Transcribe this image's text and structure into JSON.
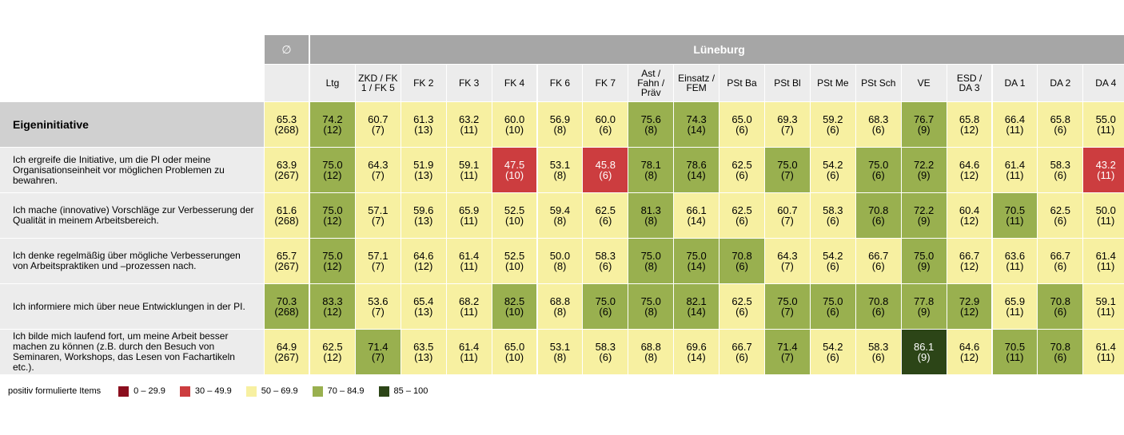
{
  "chart_data": {
    "type": "heatmap",
    "avg_header": "∅",
    "group_header": "Lüneburg",
    "avg_column_label": "",
    "columns": [
      "Ltg",
      "ZKD / FK\n1 / FK 5",
      "FK 2",
      "FK 3",
      "FK 4",
      "FK 6",
      "FK 7",
      "Ast /\nFahn /\nPräv",
      "Einsatz /\nFEM",
      "PSt Ba",
      "PSt Bl",
      "PSt Me",
      "PSt Sch",
      "VE",
      "ESD /\nDA 3",
      "DA 1",
      "DA 2",
      "DA 4"
    ],
    "rows": [
      {
        "label": "Eigeninitiative",
        "is_group": true,
        "avg": {
          "value": "65.3",
          "n": "(268)"
        },
        "cells": [
          {
            "value": "74.2",
            "n": "(12)"
          },
          {
            "value": "60.7",
            "n": "(7)"
          },
          {
            "value": "61.3",
            "n": "(13)"
          },
          {
            "value": "63.2",
            "n": "(11)"
          },
          {
            "value": "60.0",
            "n": "(10)"
          },
          {
            "value": "56.9",
            "n": "(8)"
          },
          {
            "value": "60.0",
            "n": "(6)"
          },
          {
            "value": "75.6",
            "n": "(8)"
          },
          {
            "value": "74.3",
            "n": "(14)"
          },
          {
            "value": "65.0",
            "n": "(6)"
          },
          {
            "value": "69.3",
            "n": "(7)"
          },
          {
            "value": "59.2",
            "n": "(6)"
          },
          {
            "value": "68.3",
            "n": "(6)"
          },
          {
            "value": "76.7",
            "n": "(9)"
          },
          {
            "value": "65.8",
            "n": "(12)"
          },
          {
            "value": "66.4",
            "n": "(11)"
          },
          {
            "value": "65.8",
            "n": "(6)"
          },
          {
            "value": "55.0",
            "n": "(11)"
          }
        ]
      },
      {
        "label": "Ich ergreife die Initiative, um die PI oder meine Organisationseinheit vor möglichen Problemen zu bewahren.",
        "is_group": false,
        "avg": {
          "value": "63.9",
          "n": "(267)"
        },
        "cells": [
          {
            "value": "75.0",
            "n": "(12)"
          },
          {
            "value": "64.3",
            "n": "(7)"
          },
          {
            "value": "51.9",
            "n": "(13)"
          },
          {
            "value": "59.1",
            "n": "(11)"
          },
          {
            "value": "47.5",
            "n": "(10)"
          },
          {
            "value": "53.1",
            "n": "(8)"
          },
          {
            "value": "45.8",
            "n": "(6)"
          },
          {
            "value": "78.1",
            "n": "(8)"
          },
          {
            "value": "78.6",
            "n": "(14)"
          },
          {
            "value": "62.5",
            "n": "(6)"
          },
          {
            "value": "75.0",
            "n": "(7)"
          },
          {
            "value": "54.2",
            "n": "(6)"
          },
          {
            "value": "75.0",
            "n": "(6)"
          },
          {
            "value": "72.2",
            "n": "(9)"
          },
          {
            "value": "64.6",
            "n": "(12)"
          },
          {
            "value": "61.4",
            "n": "(11)"
          },
          {
            "value": "58.3",
            "n": "(6)"
          },
          {
            "value": "43.2",
            "n": "(11)"
          }
        ]
      },
      {
        "label": "Ich mache (innovative) Vorschläge zur Verbesserung der Qualität in meinem Arbeitsbereich.",
        "is_group": false,
        "avg": {
          "value": "61.6",
          "n": "(268)"
        },
        "cells": [
          {
            "value": "75.0",
            "n": "(12)"
          },
          {
            "value": "57.1",
            "n": "(7)"
          },
          {
            "value": "59.6",
            "n": "(13)"
          },
          {
            "value": "65.9",
            "n": "(11)"
          },
          {
            "value": "52.5",
            "n": "(10)"
          },
          {
            "value": "59.4",
            "n": "(8)"
          },
          {
            "value": "62.5",
            "n": "(6)"
          },
          {
            "value": "81.3",
            "n": "(8)"
          },
          {
            "value": "66.1",
            "n": "(14)"
          },
          {
            "value": "62.5",
            "n": "(6)"
          },
          {
            "value": "60.7",
            "n": "(7)"
          },
          {
            "value": "58.3",
            "n": "(6)"
          },
          {
            "value": "70.8",
            "n": "(6)"
          },
          {
            "value": "72.2",
            "n": "(9)"
          },
          {
            "value": "60.4",
            "n": "(12)"
          },
          {
            "value": "70.5",
            "n": "(11)"
          },
          {
            "value": "62.5",
            "n": "(6)"
          },
          {
            "value": "50.0",
            "n": "(11)"
          }
        ]
      },
      {
        "label": "Ich denke regelmäßig über mögliche Verbesserungen von Arbeitspraktiken und –prozessen nach.",
        "is_group": false,
        "avg": {
          "value": "65.7",
          "n": "(267)"
        },
        "cells": [
          {
            "value": "75.0",
            "n": "(12)"
          },
          {
            "value": "57.1",
            "n": "(7)"
          },
          {
            "value": "64.6",
            "n": "(12)"
          },
          {
            "value": "61.4",
            "n": "(11)"
          },
          {
            "value": "52.5",
            "n": "(10)"
          },
          {
            "value": "50.0",
            "n": "(8)"
          },
          {
            "value": "58.3",
            "n": "(6)"
          },
          {
            "value": "75.0",
            "n": "(8)"
          },
          {
            "value": "75.0",
            "n": "(14)"
          },
          {
            "value": "70.8",
            "n": "(6)"
          },
          {
            "value": "64.3",
            "n": "(7)"
          },
          {
            "value": "54.2",
            "n": "(6)"
          },
          {
            "value": "66.7",
            "n": "(6)"
          },
          {
            "value": "75.0",
            "n": "(9)"
          },
          {
            "value": "66.7",
            "n": "(12)"
          },
          {
            "value": "63.6",
            "n": "(11)"
          },
          {
            "value": "66.7",
            "n": "(6)"
          },
          {
            "value": "61.4",
            "n": "(11)"
          }
        ]
      },
      {
        "label": "Ich informiere mich über neue Entwicklungen in der PI.",
        "is_group": false,
        "avg": {
          "value": "70.3",
          "n": "(268)"
        },
        "cells": [
          {
            "value": "83.3",
            "n": "(12)"
          },
          {
            "value": "53.6",
            "n": "(7)"
          },
          {
            "value": "65.4",
            "n": "(13)"
          },
          {
            "value": "68.2",
            "n": "(11)"
          },
          {
            "value": "82.5",
            "n": "(10)"
          },
          {
            "value": "68.8",
            "n": "(8)"
          },
          {
            "value": "75.0",
            "n": "(6)"
          },
          {
            "value": "75.0",
            "n": "(8)"
          },
          {
            "value": "82.1",
            "n": "(14)"
          },
          {
            "value": "62.5",
            "n": "(6)"
          },
          {
            "value": "75.0",
            "n": "(7)"
          },
          {
            "value": "75.0",
            "n": "(6)"
          },
          {
            "value": "70.8",
            "n": "(6)"
          },
          {
            "value": "77.8",
            "n": "(9)"
          },
          {
            "value": "72.9",
            "n": "(12)"
          },
          {
            "value": "65.9",
            "n": "(11)"
          },
          {
            "value": "70.8",
            "n": "(6)"
          },
          {
            "value": "59.1",
            "n": "(11)"
          }
        ]
      },
      {
        "label": "Ich bilde mich laufend fort, um meine Arbeit besser machen zu können (z.B. durch den Besuch von Seminaren, Workshops, das Lesen von Fachartikeln etc.).",
        "is_group": false,
        "avg": {
          "value": "64.9",
          "n": "(267)"
        },
        "cells": [
          {
            "value": "62.5",
            "n": "(12)"
          },
          {
            "value": "71.4",
            "n": "(7)"
          },
          {
            "value": "63.5",
            "n": "(13)"
          },
          {
            "value": "61.4",
            "n": "(11)"
          },
          {
            "value": "65.0",
            "n": "(10)"
          },
          {
            "value": "53.1",
            "n": "(8)"
          },
          {
            "value": "58.3",
            "n": "(6)"
          },
          {
            "value": "68.8",
            "n": "(8)"
          },
          {
            "value": "69.6",
            "n": "(14)"
          },
          {
            "value": "66.7",
            "n": "(6)"
          },
          {
            "value": "71.4",
            "n": "(7)"
          },
          {
            "value": "54.2",
            "n": "(6)"
          },
          {
            "value": "58.3",
            "n": "(6)"
          },
          {
            "value": "86.1",
            "n": "(9)"
          },
          {
            "value": "64.6",
            "n": "(12)"
          },
          {
            "value": "70.5",
            "n": "(11)"
          },
          {
            "value": "70.8",
            "n": "(6)"
          },
          {
            "value": "61.4",
            "n": "(11)"
          }
        ]
      }
    ],
    "legend": {
      "title": "positiv formulierte Items",
      "items": [
        {
          "label": "0 – 29.9",
          "min": 0,
          "max": 29.9,
          "color": "#8b0e1e"
        },
        {
          "label": "30 – 49.9",
          "min": 30,
          "max": 49.9,
          "color": "#cc3d3f"
        },
        {
          "label": "50 – 69.9",
          "min": 50,
          "max": 69.9,
          "color": "#f7f0a1"
        },
        {
          "label": "70 – 84.9",
          "min": 70,
          "max": 84.9,
          "color": "#99b04f"
        },
        {
          "label": "85 – 100",
          "min": 85,
          "max": 100,
          "color": "#2c4517"
        }
      ]
    },
    "text_colors": {
      "light": "#ffffff",
      "dark": "#000000"
    }
  }
}
